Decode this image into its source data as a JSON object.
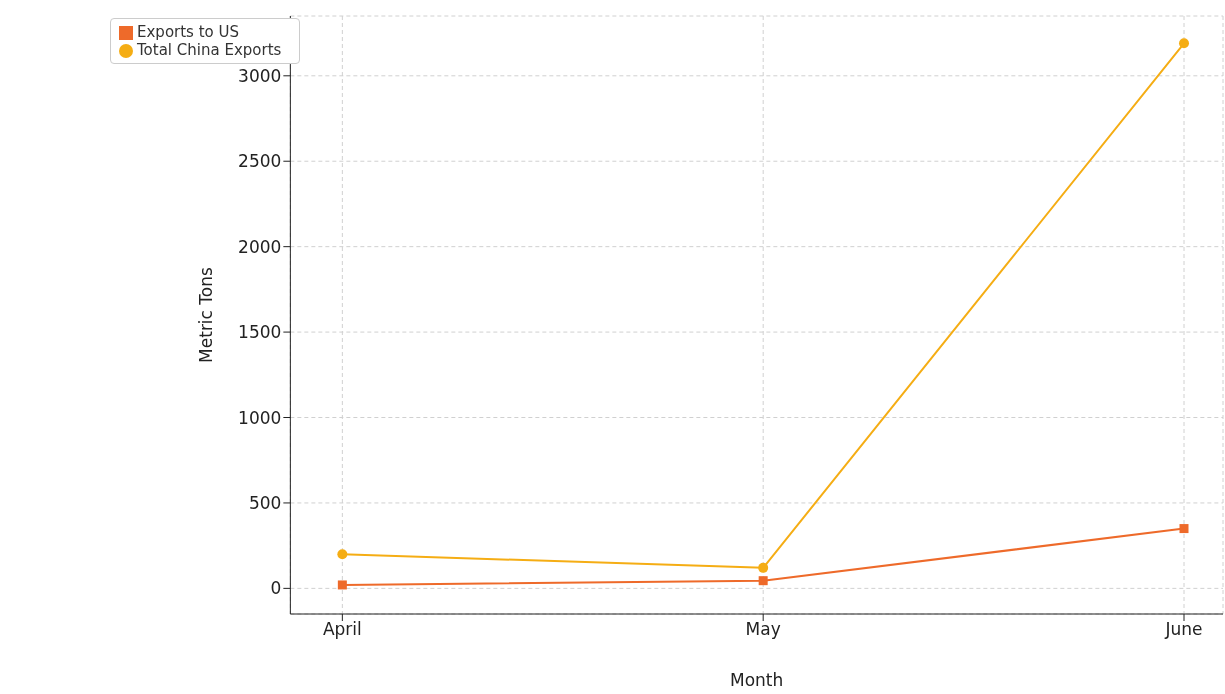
{
  "chart_data": {
    "type": "line",
    "xlabel": "Month",
    "ylabel": "Metric Tons",
    "categories": [
      "April",
      "May",
      "June"
    ],
    "series": [
      {
        "name": "Total China Exports",
        "color": "#f5ad14",
        "marker": "circle",
        "values": [
          200,
          120,
          3190
        ]
      },
      {
        "name": "Exports to US",
        "color": "#ee6a2a",
        "marker": "square",
        "values": [
          20,
          45,
          350
        ]
      }
    ],
    "ylim": [
      -150,
      3350
    ],
    "yticks": [
      0,
      500,
      1000,
      1500,
      2000,
      2500,
      3000
    ],
    "grid": true,
    "legend": "top left",
    "line_style": "solid"
  }
}
